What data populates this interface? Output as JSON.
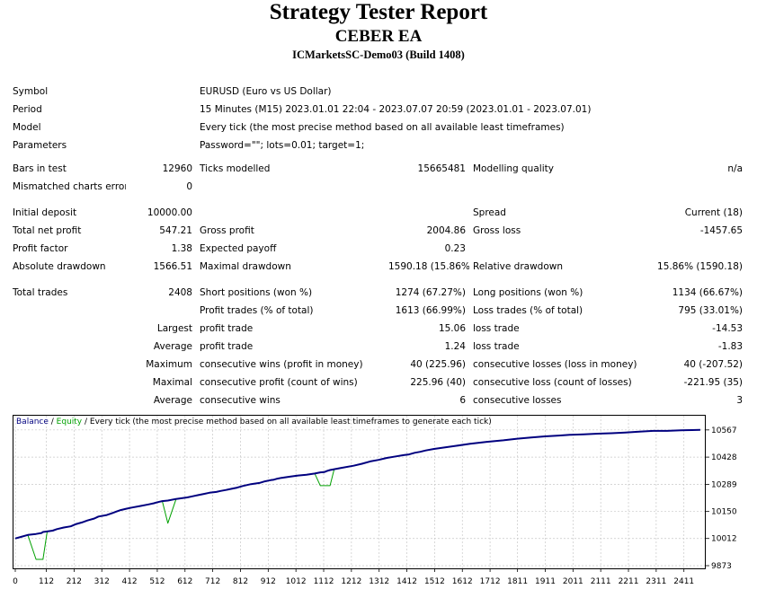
{
  "header": {
    "title": "Strategy Tester Report",
    "ea_name": "CEBER EA",
    "server": "ICMarketsSC-Demo03 (Build 1408)"
  },
  "info": {
    "symbol_label": "Symbol",
    "symbol": "EURUSD (Euro vs US Dollar)",
    "period_label": "Period",
    "period": "15 Minutes (M15) 2023.01.01 22:04 - 2023.07.07 20:59 (2023.01.01 - 2023.07.01)",
    "model_label": "Model",
    "model": "Every tick (the most precise method based on all available least timeframes)",
    "parameters_label": "Parameters",
    "parameters": "Password=\"\"; lots=0.01; target=1;"
  },
  "bars": {
    "bars_label": "Bars in test",
    "bars": "12960",
    "ticks_label": "Ticks modelled",
    "ticks": "15665481",
    "quality_label": "Modelling quality",
    "quality": "n/a",
    "mismatch_label": "Mismatched charts errors",
    "mismatch": "0"
  },
  "results": {
    "initial_deposit_label": "Initial deposit",
    "initial_deposit": "10000.00",
    "spread_label": "Spread",
    "spread": "Current (18)",
    "net_profit_label": "Total net profit",
    "net_profit": "547.21",
    "gross_profit_label": "Gross profit",
    "gross_profit": "2004.86",
    "gross_loss_label": "Gross loss",
    "gross_loss": "-1457.65",
    "profit_factor_label": "Profit factor",
    "profit_factor": "1.38",
    "expected_payoff_label": "Expected payoff",
    "expected_payoff": "0.23",
    "abs_dd_label": "Absolute drawdown",
    "abs_dd": "1566.51",
    "max_dd_label": "Maximal drawdown",
    "max_dd": "1590.18 (15.86%)",
    "rel_dd_label": "Relative drawdown",
    "rel_dd": "15.86% (1590.18)"
  },
  "trades": {
    "total_label": "Total trades",
    "total": "2408",
    "short_label": "Short positions (won %)",
    "short": "1274 (67.27%)",
    "long_label": "Long positions (won %)",
    "long": "1134 (66.67%)",
    "profit_trades_label": "Profit trades (% of total)",
    "profit_trades": "1613 (66.99%)",
    "loss_trades_label": "Loss trades (% of total)",
    "loss_trades": "795 (33.01%)",
    "largest_label": "Largest",
    "average_label": "Average",
    "maximum_label": "Maximum",
    "maximal_label": "Maximal",
    "profit_trade_label": "profit trade",
    "loss_trade_label": "loss trade",
    "largest_profit": "15.06",
    "largest_loss": "-14.53",
    "average_profit": "1.24",
    "average_loss": "-1.83",
    "cons_wins_money_label": "consecutive wins (profit in money)",
    "cons_wins_money": "40 (225.96)",
    "cons_losses_money_label": "consecutive losses (loss in money)",
    "cons_losses_money": "40 (-207.52)",
    "cons_profit_count_label": "consecutive profit (count of wins)",
    "cons_profit_count": "225.96 (40)",
    "cons_loss_count_label": "consecutive loss (count of losses)",
    "cons_loss_count": "-221.95 (35)",
    "avg_cons_wins_label": "consecutive wins",
    "avg_cons_wins": "6",
    "avg_cons_losses_label": "consecutive losses",
    "avg_cons_losses": "3"
  },
  "colors": {
    "balance": "#00007F",
    "equity": "#00A000",
    "grid": "#C8C8C8",
    "axis": "#000000"
  },
  "chart_data": {
    "type": "line",
    "legend": {
      "balance": "Balance",
      "sep1": " / ",
      "equity": "Equity",
      "sep2": " / ",
      "description": "Every tick (the most precise method based on all available least timeframes to generate each tick)"
    },
    "x_ticks": [
      0,
      112,
      212,
      312,
      412,
      512,
      612,
      712,
      812,
      912,
      1012,
      1112,
      1212,
      1312,
      1412,
      1512,
      1612,
      1712,
      1811,
      1911,
      2011,
      2111,
      2211,
      2311,
      2411
    ],
    "y_ticks": [
      9873,
      10012,
      10150,
      10289,
      10428,
      10567
    ],
    "xlim": [
      0,
      2480
    ],
    "ylim": [
      9873,
      10580
    ],
    "series": [
      {
        "name": "Balance",
        "x": [
          0,
          20,
          45,
          75,
          95,
          100,
          115,
          135,
          150,
          175,
          200,
          220,
          240,
          260,
          285,
          300,
          330,
          350,
          365,
          380,
          400,
          420,
          450,
          480,
          500,
          510,
          520,
          530,
          550,
          580,
          620,
          640,
          660,
          680,
          700,
          725,
          740,
          760,
          780,
          800,
          820,
          850,
          880,
          900,
          920,
          930,
          945,
          960,
          990,
          1020,
          1050,
          1080,
          1100,
          1115,
          1125,
          1135,
          1150,
          1180,
          1220,
          1250,
          1280,
          1310,
          1340,
          1375,
          1400,
          1420,
          1430,
          1440,
          1460,
          1480,
          1510,
          1550,
          1590,
          1640,
          1700,
          1760,
          1810,
          1860,
          1910,
          1960,
          2000,
          2050,
          2100,
          2150,
          2200,
          2250,
          2300,
          2350,
          2380,
          2400,
          2440,
          2470
        ],
        "y": [
          10012,
          10020,
          10030,
          10035,
          10040,
          10045,
          10048,
          10052,
          10060,
          10068,
          10074,
          10086,
          10094,
          10104,
          10114,
          10124,
          10132,
          10142,
          10150,
          10157,
          10164,
          10170,
          10178,
          10186,
          10192,
          10196,
          10200,
          10203,
          10206,
          10214,
          10222,
          10228,
          10234,
          10240,
          10246,
          10250,
          10255,
          10260,
          10266,
          10272,
          10280,
          10290,
          10296,
          10304,
          10310,
          10312,
          10318,
          10322,
          10328,
          10334,
          10338,
          10344,
          10350,
          10352,
          10358,
          10362,
          10366,
          10374,
          10384,
          10394,
          10406,
          10414,
          10424,
          10432,
          10438,
          10442,
          10446,
          10450,
          10455,
          10462,
          10470,
          10478,
          10486,
          10496,
          10506,
          10514,
          10522,
          10528,
          10534,
          10538,
          10542,
          10544,
          10548,
          10550,
          10554,
          10558,
          10562,
          10562,
          10564,
          10565,
          10566,
          10567
        ]
      },
      {
        "name": "Equity",
        "x": [
          0,
          20,
          45,
          75,
          95,
          100,
          115,
          135,
          150,
          175,
          200,
          220,
          240,
          260,
          285,
          300,
          330,
          350,
          365,
          380,
          400,
          420,
          450,
          480,
          500,
          510,
          520,
          530,
          550,
          580,
          620,
          640,
          660,
          680,
          700,
          725,
          740,
          760,
          780,
          800,
          820,
          850,
          880,
          900,
          920,
          930,
          945,
          960,
          990,
          1020,
          1050,
          1080,
          1100,
          1115,
          1125,
          1135,
          1150,
          1180,
          1220,
          1250,
          1280,
          1310,
          1340,
          1375,
          1400,
          1420,
          1430,
          1440,
          1460,
          1480,
          1510,
          1550,
          1590,
          1640,
          1700,
          1760,
          1810,
          1860,
          1910,
          1960,
          2000,
          2050,
          2100,
          2150,
          2200,
          2250,
          2300,
          2350,
          2380,
          2400,
          2440,
          2470
        ],
        "y": [
          10012,
          10020,
          10030,
          9905,
          9905,
          9905,
          10048,
          10052,
          10060,
          10068,
          10074,
          10086,
          10094,
          10104,
          10114,
          10124,
          10132,
          10142,
          10150,
          10157,
          10164,
          10170,
          10178,
          10186,
          10192,
          10196,
          10200,
          10203,
          10090,
          10214,
          10222,
          10228,
          10234,
          10240,
          10246,
          10250,
          10255,
          10260,
          10266,
          10272,
          10280,
          10290,
          10296,
          10304,
          10310,
          10312,
          10318,
          10322,
          10328,
          10334,
          10338,
          10344,
          10282,
          10282,
          10282,
          10282,
          10366,
          10374,
          10384,
          10394,
          10406,
          10414,
          10424,
          10432,
          10438,
          10442,
          10446,
          10450,
          10455,
          10462,
          10470,
          10478,
          10486,
          10496,
          10506,
          10514,
          10522,
          10528,
          10534,
          10538,
          10542,
          10544,
          10548,
          10550,
          10554,
          10558,
          10562,
          10562,
          10564,
          10565,
          10566,
          10567
        ]
      }
    ]
  }
}
